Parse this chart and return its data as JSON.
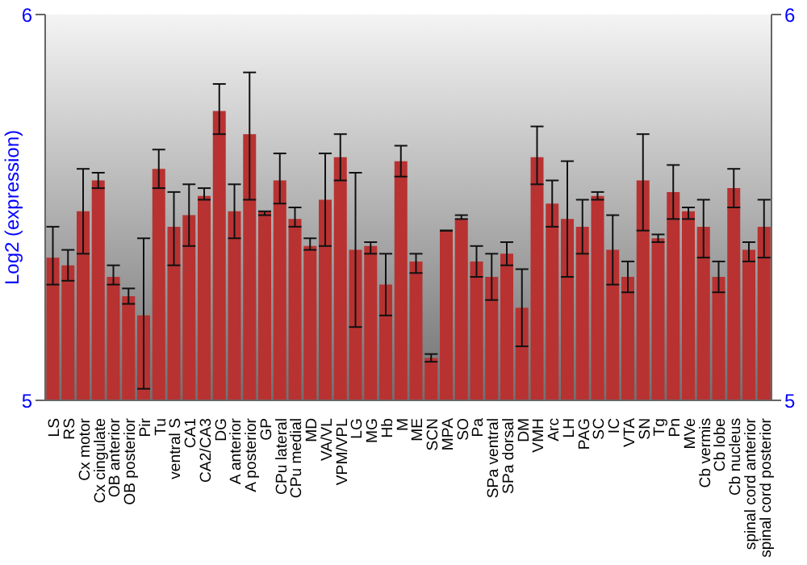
{
  "chart_data": {
    "type": "bar",
    "ylabel": "Log2 (expression)",
    "categories": [
      "LS",
      "RS",
      "Cx motor",
      "Cx cingulate",
      "OB anterior",
      "OB posterior",
      "Pir",
      "Tu",
      "ventral S",
      "CA1",
      "CA2/CA3",
      "DG",
      "A anterior",
      "A posterior",
      "GP",
      "CPu lateral",
      "CPu medial",
      "MD",
      "VA/VL",
      "VPM/VPL",
      "LG",
      "MG",
      "Hb",
      "M",
      "ME",
      "SCN",
      "MPA",
      "SO",
      "Pa",
      "SPa ventral",
      "SPa dorsal",
      "DM",
      "VMH",
      "Arc",
      "LH",
      "PAG",
      "SC",
      "IC",
      "VTA",
      "SN",
      "Tg",
      "Pn",
      "MVe",
      "Cb vermis",
      "Cb lobe",
      "Cb nucleus",
      "spinal cord anterior",
      "spinal cord posterior"
    ],
    "values": [
      5.37,
      5.35,
      5.49,
      5.57,
      5.32,
      5.27,
      5.22,
      5.6,
      5.45,
      5.48,
      5.53,
      5.75,
      5.49,
      5.69,
      5.49,
      5.57,
      5.47,
      5.4,
      5.52,
      5.63,
      5.39,
      5.4,
      5.3,
      5.62,
      5.36,
      5.11,
      5.44,
      5.47,
      5.36,
      5.32,
      5.38,
      5.24,
      5.63,
      5.51,
      5.47,
      5.45,
      5.53,
      5.39,
      5.32,
      5.57,
      5.42,
      5.54,
      5.49,
      5.45,
      5.32,
      5.55,
      5.39,
      5.45
    ],
    "errors": [
      [
        5.3,
        5.45
      ],
      [
        5.31,
        5.39
      ],
      [
        5.38,
        5.6
      ],
      [
        5.55,
        5.59
      ],
      [
        5.3,
        5.35
      ],
      [
        5.25,
        5.29
      ],
      [
        5.03,
        5.42
      ],
      [
        5.55,
        5.65
      ],
      [
        5.35,
        5.54
      ],
      [
        5.4,
        5.56
      ],
      [
        5.52,
        5.55
      ],
      [
        5.69,
        5.82
      ],
      [
        5.42,
        5.56
      ],
      [
        5.52,
        5.85
      ],
      [
        5.48,
        5.49
      ],
      [
        5.51,
        5.64
      ],
      [
        5.45,
        5.5
      ],
      [
        5.39,
        5.42
      ],
      [
        5.4,
        5.64
      ],
      [
        5.57,
        5.69
      ],
      [
        5.19,
        5.59
      ],
      [
        5.38,
        5.41
      ],
      [
        5.22,
        5.38
      ],
      [
        5.58,
        5.66
      ],
      [
        5.33,
        5.38
      ],
      [
        5.1,
        5.12
      ],
      [
        5.44,
        5.44
      ],
      [
        5.47,
        5.48
      ],
      [
        5.32,
        5.4
      ],
      [
        5.26,
        5.38
      ],
      [
        5.35,
        5.41
      ],
      [
        5.14,
        5.34
      ],
      [
        5.56,
        5.71
      ],
      [
        5.45,
        5.57
      ],
      [
        5.32,
        5.62
      ],
      [
        5.38,
        5.52
      ],
      [
        5.52,
        5.54
      ],
      [
        5.3,
        5.48
      ],
      [
        5.28,
        5.36
      ],
      [
        5.44,
        5.69
      ],
      [
        5.41,
        5.43
      ],
      [
        5.47,
        5.61
      ],
      [
        5.47,
        5.5
      ],
      [
        5.37,
        5.52
      ],
      [
        5.28,
        5.36
      ],
      [
        5.5,
        5.6
      ],
      [
        5.36,
        5.41
      ],
      [
        5.37,
        5.52
      ]
    ],
    "color": "#b83232",
    "ylim": [
      5,
      6
    ],
    "yticks": [
      5,
      6
    ],
    "y2lim": [
      5,
      6
    ],
    "y2ticks": [
      5,
      6
    ],
    "grid": false
  }
}
